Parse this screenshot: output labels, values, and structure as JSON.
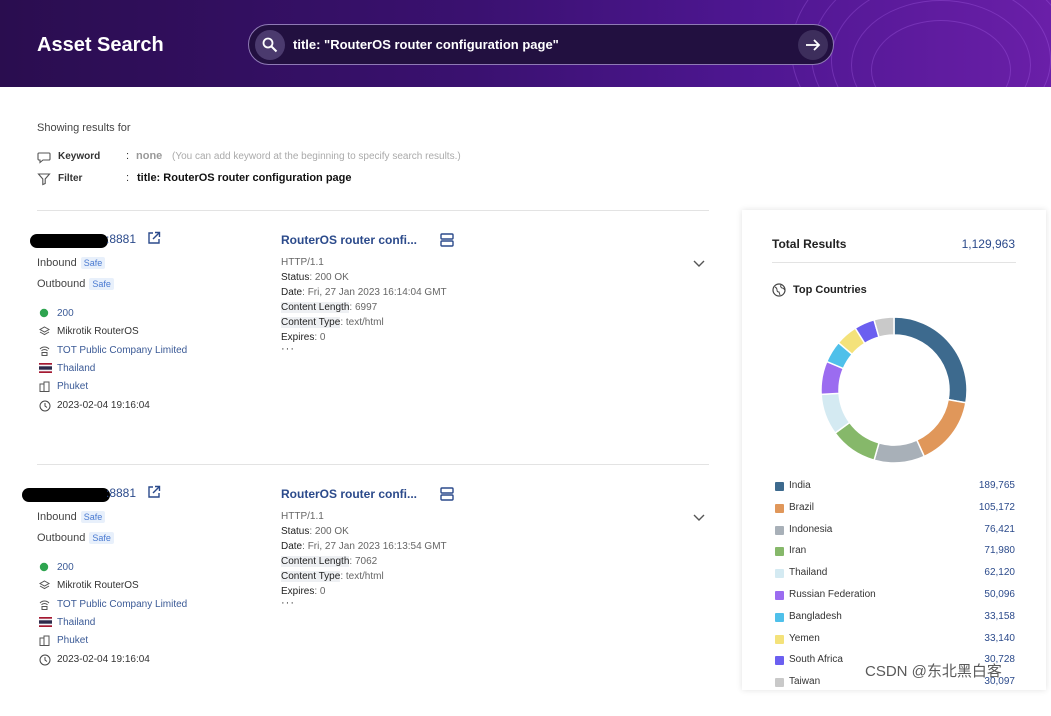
{
  "header": {
    "title": "Asset Search",
    "search_value": "title: \"RouterOS router configuration page\""
  },
  "query": {
    "showing_label": "Showing results for",
    "keyword_label": "Keyword",
    "keyword_colon": ":",
    "keyword_value": "none",
    "keyword_hint": "(You can add keyword at the beginning to specify search results.)",
    "filter_label": "Filter",
    "filter_colon": ":",
    "filter_value": "title: RouterOS router configuration page"
  },
  "results": [
    {
      "port": ":8881",
      "inbound_label": "Inbound",
      "inbound_status": "Safe",
      "outbound_label": "Outbound",
      "outbound_status": "Safe",
      "status_code": "200",
      "product": "Mikrotik RouterOS",
      "organization": "TOT Public Company Limited",
      "country": "Thailand",
      "city": "Phuket",
      "date": "2023-02-04 19:16:04",
      "title": "RouterOS router confi...",
      "http_version": "HTTP/1.1",
      "headers": [
        {
          "key": "Status",
          "value": "200 OK"
        },
        {
          "key": "Date",
          "value": "Fri, 27 Jan 2023 16:14:04 GMT"
        },
        {
          "key": "Content Length",
          "value": "6997"
        },
        {
          "key": "Content Type",
          "value": "text/html"
        },
        {
          "key": "Expires",
          "value": "0"
        }
      ],
      "more": "···"
    },
    {
      "port": ":8881",
      "inbound_label": "Inbound",
      "inbound_status": "Safe",
      "outbound_label": "Outbound",
      "outbound_status": "Safe",
      "status_code": "200",
      "product": "Mikrotik RouterOS",
      "organization": "TOT Public Company Limited",
      "country": "Thailand",
      "city": "Phuket",
      "date": "2023-02-04 19:16:04",
      "title": "RouterOS router confi...",
      "http_version": "HTTP/1.1",
      "headers": [
        {
          "key": "Status",
          "value": "200 OK"
        },
        {
          "key": "Date",
          "value": "Fri, 27 Jan 2023 16:13:54 GMT"
        },
        {
          "key": "Content Length",
          "value": "7062"
        },
        {
          "key": "Content Type",
          "value": "text/html"
        },
        {
          "key": "Expires",
          "value": "0"
        }
      ],
      "more": "···"
    }
  ],
  "stats": {
    "total_label": "Total Results",
    "total_value": "1,129,963",
    "top_countries_label": "Top Countries",
    "countries": [
      {
        "name": "India",
        "value": "189,765",
        "count": 189765,
        "color": "#3d6a8e"
      },
      {
        "name": "Brazil",
        "value": "105,172",
        "count": 105172,
        "color": "#e0975a"
      },
      {
        "name": "Indonesia",
        "value": "76,421",
        "count": 76421,
        "color": "#a8b0b8"
      },
      {
        "name": "Iran",
        "value": "71,980",
        "count": 71980,
        "color": "#86b86a"
      },
      {
        "name": "Thailand",
        "value": "62,120",
        "count": 62120,
        "color": "#d4eaf2"
      },
      {
        "name": "Russian Federation",
        "value": "50,096",
        "count": 50096,
        "color": "#9b6cf0"
      },
      {
        "name": "Bangladesh",
        "value": "33,158",
        "count": 33158,
        "color": "#4fc0ea"
      },
      {
        "name": "Yemen",
        "value": "33,140",
        "count": 33140,
        "color": "#f4e27a"
      },
      {
        "name": "South Africa",
        "value": "30,728",
        "count": 30728,
        "color": "#6b5ff0"
      },
      {
        "name": "Taiwan",
        "value": "30,097",
        "count": 30097,
        "color": "#c9c9c9"
      }
    ]
  },
  "watermark": "CSDN @东北黑白客"
}
